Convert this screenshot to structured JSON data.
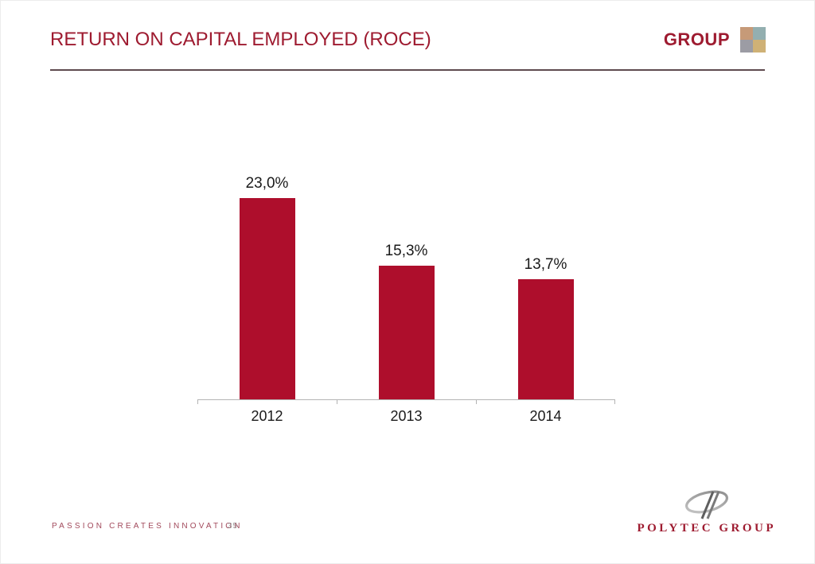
{
  "header": {
    "title": "RETURN ON CAPITAL EMPLOYED (ROCE)",
    "brand": "GROUP"
  },
  "chart_data": {
    "type": "bar",
    "title": "Return on Capital Employed (ROCE)",
    "categories": [
      "2012",
      "2013",
      "2014"
    ],
    "values": [
      23.0,
      15.3,
      13.7
    ],
    "value_labels": [
      "23,0%",
      "15,3%",
      "13,7%"
    ],
    "xlabel": "",
    "ylabel": "",
    "ylim": [
      0,
      25
    ],
    "grid": false,
    "legend": false,
    "bar_color": "#AE0E2C",
    "axis_color": "#B3B3B3",
    "label_color": "#1A1A1A"
  },
  "footer": {
    "slogan": "PASSION CREATES INNOVATION",
    "page_number": "35",
    "company": "POLYTEC GROUP"
  },
  "colors": {
    "accent_red": "#9E1B30",
    "bar_red": "#AE0E2C",
    "divider": "#5E4A4F",
    "squares": [
      "#C69A78",
      "#93AFB0",
      "#9C9CA4",
      "#CFB176"
    ],
    "axis_gray": "#B3B3B3",
    "page_number_gray": "#9B9B9B",
    "logo_ellipse_gray": "#9A9A9A",
    "logo_slash_gray": "#5F5F5F"
  }
}
